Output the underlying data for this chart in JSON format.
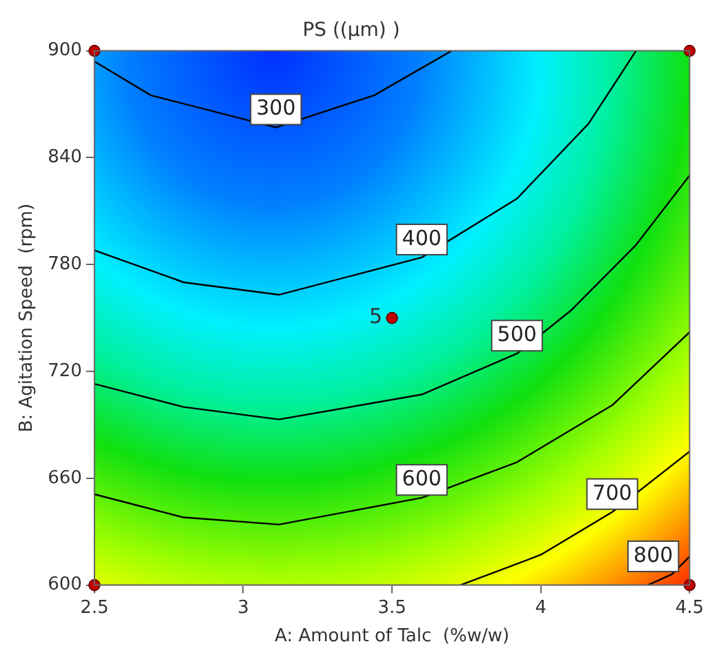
{
  "chart_data": {
    "type": "line",
    "title": "PS ((µm) )",
    "xlabel": "A: Amount of Talc  (%w/w)",
    "ylabel": "B: Agitation Speed  (rpm)",
    "xlim": [
      2.5,
      4.5
    ],
    "xticks": [
      2.5,
      3,
      3.5,
      4,
      4.5
    ],
    "ylim": [
      600,
      900
    ],
    "yticks": [
      600,
      660,
      720,
      780,
      840,
      900
    ],
    "grid": false,
    "legend": false,
    "marker": "none",
    "line_style": "solid",
    "series": [
      {
        "name": "300",
        "color": "#000000",
        "x": [
          2.5,
          2.69,
          3.11,
          3.44,
          3.7
        ],
        "values": [
          894,
          875,
          857,
          875,
          900
        ]
      },
      {
        "name": "400",
        "color": "#000000",
        "x": [
          2.5,
          2.8,
          3.12,
          3.6,
          3.92,
          4.16,
          4.32
        ],
        "values": [
          788,
          770,
          763,
          784,
          817,
          859,
          900
        ]
      },
      {
        "name": "500",
        "color": "#000000",
        "x": [
          2.5,
          2.8,
          3.12,
          3.6,
          3.92,
          4.1,
          4.32,
          4.5
        ],
        "values": [
          713,
          700,
          693,
          707,
          730,
          754,
          791,
          830
        ]
      },
      {
        "name": "600",
        "color": "#000000",
        "x": [
          2.5,
          2.8,
          3.12,
          3.6,
          3.92,
          4.24,
          4.5
        ],
        "values": [
          651,
          638,
          634,
          649,
          669,
          701,
          742
        ]
      },
      {
        "name": "700",
        "color": "#000000",
        "x": [
          3.73,
          4.0,
          4.24,
          4.5
        ],
        "values": [
          600,
          617,
          641,
          675
        ]
      },
      {
        "name": "800",
        "color": "#000000",
        "x": [
          4.36,
          4.44,
          4.5
        ],
        "values": [
          600,
          606,
          616
        ]
      },
      {
        "type": "scatter",
        "marker": "circle",
        "color": "#c00000",
        "x": [
          2.5,
          2.5,
          3.5,
          4.5,
          4.5
        ],
        "values": [
          600,
          900,
          750,
          900,
          600
        ]
      }
    ],
    "annotations": [
      {
        "text": "5",
        "x": 3.5,
        "y": 750
      }
    ]
  }
}
